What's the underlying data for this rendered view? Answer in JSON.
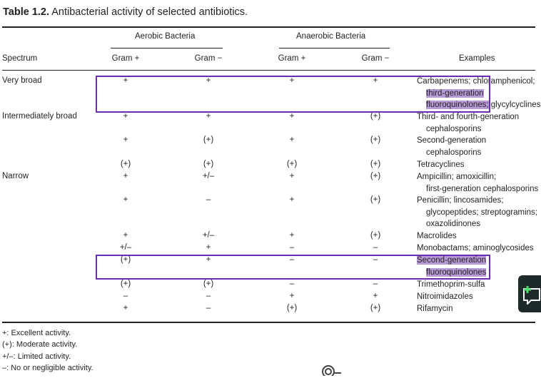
{
  "table": {
    "title_label": "Table 1.2.",
    "title_text": "Antibacterial activity of selected antibiotics.",
    "groups": [
      "Aerobic Bacteria",
      "Anaerobic Bacteria"
    ],
    "columns": [
      "Spectrum",
      "Gram +",
      "Gram −",
      "Gram +",
      "Gram −",
      "Examples"
    ],
    "rows": [
      {
        "spectrum": "Very broad",
        "c1": "+",
        "c2": "+",
        "c3": "+",
        "c4": "+",
        "ex": [
          "Carbapenems; chloramphenicol;",
          "third-generation",
          "fluoroquinolones; glycylcyclines"
        ]
      },
      {
        "spectrum": "Intermediately broad",
        "c1": "+",
        "c2": "+",
        "c3": "+",
        "c4": "(+)",
        "ex": [
          "Third- and fourth-generation",
          "cephalosporins"
        ]
      },
      {
        "spectrum": "",
        "c1": "+",
        "c2": "(+)",
        "c3": "+",
        "c4": "(+)",
        "ex": [
          "Second-generation",
          "cephalosporins"
        ]
      },
      {
        "spectrum": "",
        "c1": "(+)",
        "c2": "(+)",
        "c3": "(+)",
        "c4": "(+)",
        "ex": [
          "Tetracyclines"
        ]
      },
      {
        "spectrum": "Narrow",
        "c1": "+",
        "c2": "+/–",
        "c3": "+",
        "c4": "(+)",
        "ex": [
          "Ampicillin; amoxicillin;",
          "first-generation cephalosporins"
        ]
      },
      {
        "spectrum": "",
        "c1": "+",
        "c2": "–",
        "c3": "+",
        "c4": "(+)",
        "ex": [
          "Penicillin; lincosamides;",
          "glycopeptides; streptogramins;",
          "oxazolidinones"
        ]
      },
      {
        "spectrum": "",
        "c1": "+",
        "c2": "+/–",
        "c3": "+",
        "c4": "(+)",
        "ex": [
          "Macrolides"
        ]
      },
      {
        "spectrum": "",
        "c1": "+/–",
        "c2": "+",
        "c3": "–",
        "c4": "–",
        "ex": [
          "Monobactams; aminoglycosides"
        ]
      },
      {
        "spectrum": "",
        "c1": "(+)",
        "c2": "+",
        "c3": "–",
        "c4": "–",
        "ex": [
          "Second-generation",
          "fluoroquinolones"
        ]
      },
      {
        "spectrum": "",
        "c1": "(+)",
        "c2": "(+)",
        "c3": "–",
        "c4": "–",
        "ex": [
          "Trimethoprim-sulfa"
        ]
      },
      {
        "spectrum": "",
        "c1": "–",
        "c2": "–",
        "c3": "+",
        "c4": "+",
        "ex": [
          "Nitroimidazoles"
        ]
      },
      {
        "spectrum": "",
        "c1": "+",
        "c2": "–",
        "c3": "(+)",
        "c4": "(+)",
        "ex": [
          "Rifamycin"
        ]
      }
    ]
  },
  "legend": [
    "+: Excellent activity.",
    "(+): Moderate activity.",
    "+/–: Limited activity.",
    "–: No or negligible activity."
  ],
  "highlight_color": "#b79bd6",
  "box_color": "#6a2bb6",
  "icons": {
    "side_button": "add-comment-icon",
    "cursor": "loading-cursor-icon"
  }
}
